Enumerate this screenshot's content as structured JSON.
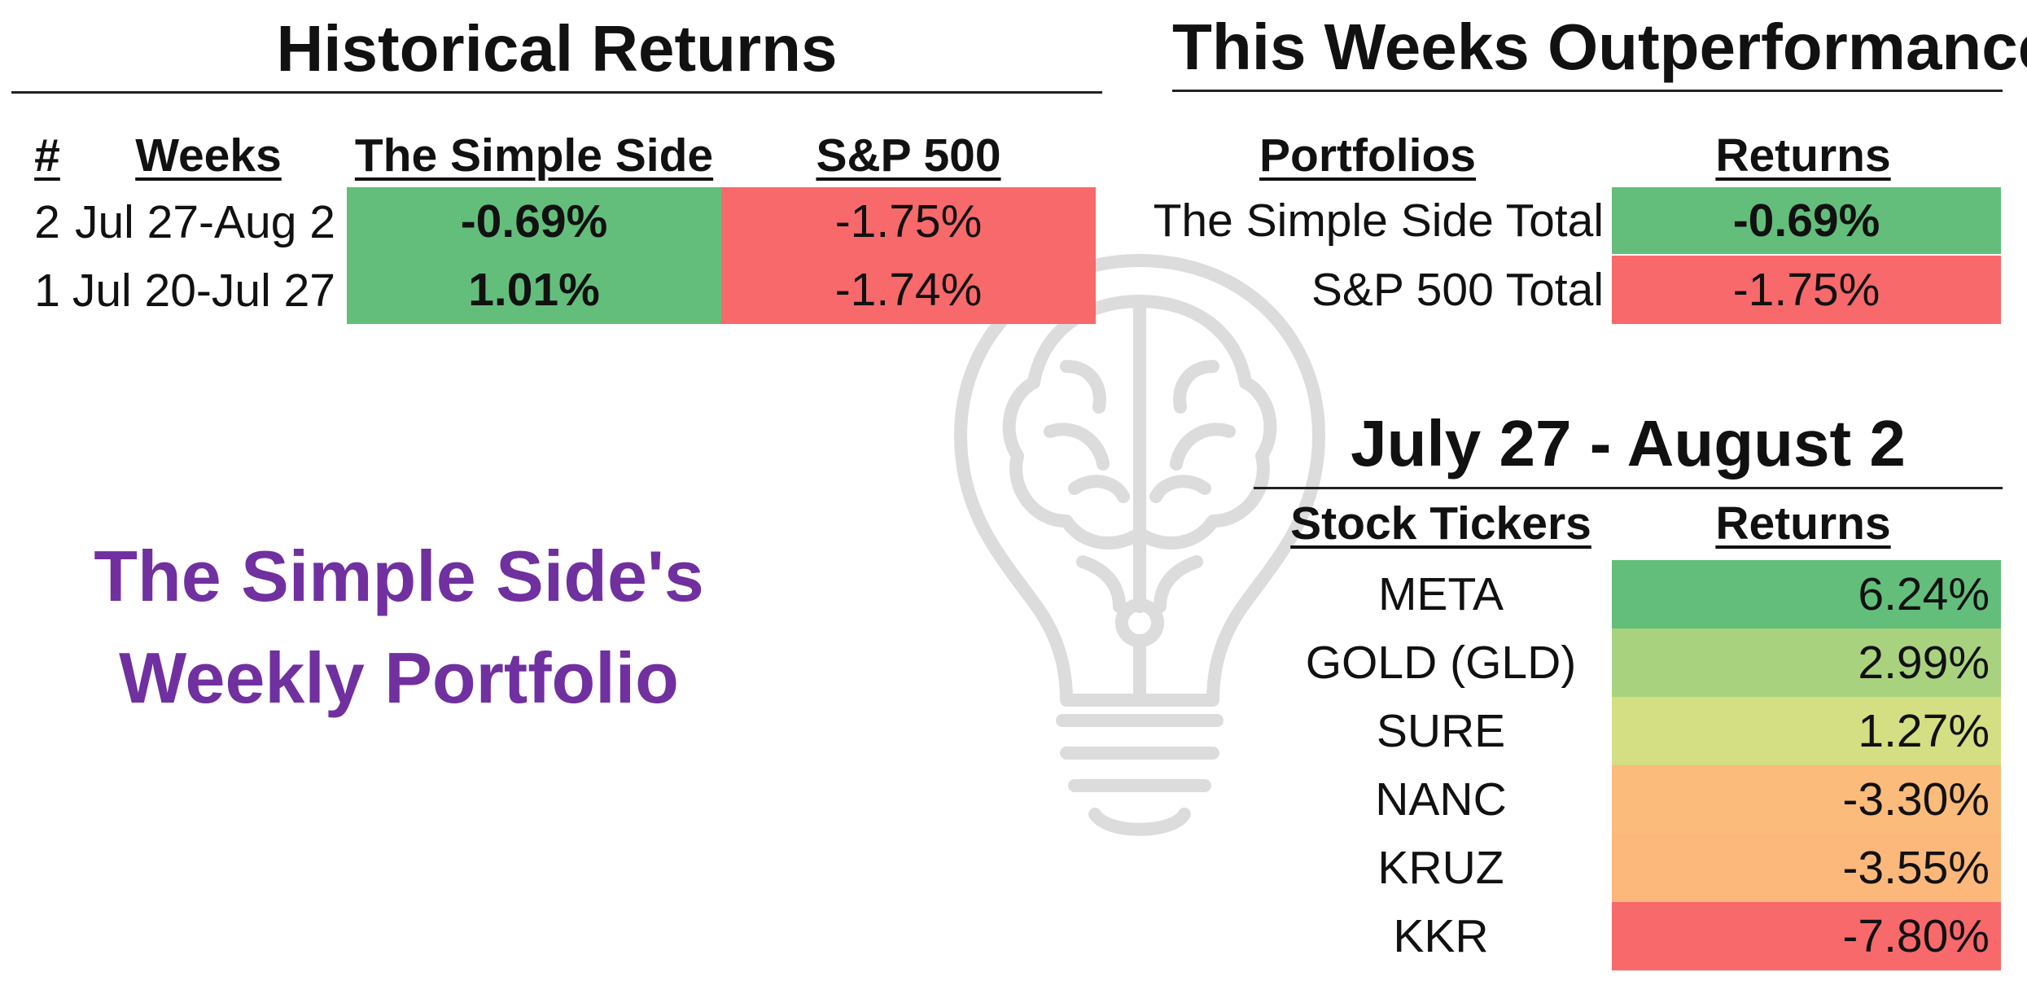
{
  "historical": {
    "title": "Historical Returns",
    "headers": {
      "num": "#",
      "weeks": "Weeks",
      "simple": "The Simple Side",
      "sp": "S&P 500"
    },
    "rows": [
      {
        "num": "2",
        "weeks": "Jul 27-Aug 2",
        "simple": "-0.69%",
        "sp": "-1.75%"
      },
      {
        "num": "1",
        "weeks": "Jul 20-Jul 27",
        "simple": "1.01%",
        "sp": "-1.74%"
      }
    ]
  },
  "outperformance": {
    "title": "This Weeks Outperformance",
    "headers": {
      "portfolios": "Portfolios",
      "returns": "Returns"
    },
    "rows": [
      {
        "name": "The Simple Side Total",
        "value": "-0.69%"
      },
      {
        "name": "S&P 500 Total",
        "value": "-1.75%"
      }
    ]
  },
  "weekly": {
    "title": "July 27 - August 2",
    "headers": {
      "tickers": "Stock Tickers",
      "returns": "Returns"
    },
    "rows": [
      {
        "ticker": "META",
        "value": "6.24%",
        "color": "#63be7b"
      },
      {
        "ticker": "GOLD (GLD)",
        "value": "2.99%",
        "color": "#a9d27f"
      },
      {
        "ticker": "SURE",
        "value": "1.27%",
        "color": "#d3df82"
      },
      {
        "ticker": "NANC",
        "value": "-3.30%",
        "color": "#fbbb7a"
      },
      {
        "ticker": "KRUZ",
        "value": "-3.55%",
        "color": "#fbb87a"
      },
      {
        "ticker": "KKR",
        "value": "-7.80%",
        "color": "#f8696b"
      }
    ]
  },
  "brand": {
    "line1": "The Simple Side's",
    "line2": "Weekly Portfolio",
    "color": "#7030a0"
  },
  "colors": {
    "green": "#63be7b",
    "red": "#f8696b"
  },
  "watermark_icon": "lightbulb-brain-icon"
}
